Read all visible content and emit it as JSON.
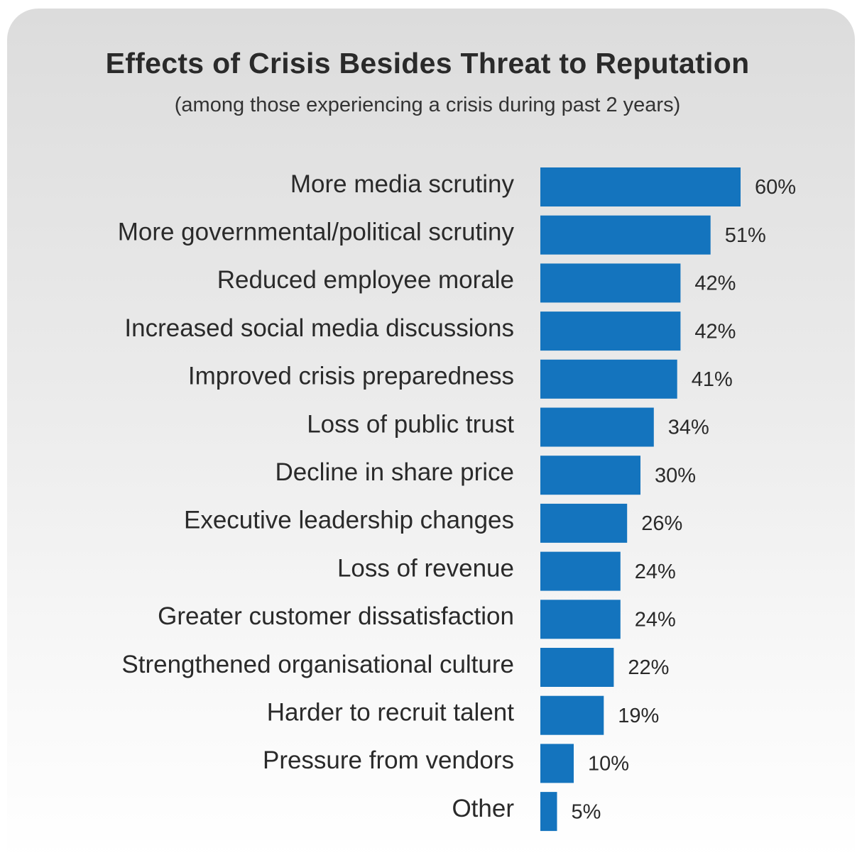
{
  "chart_data": {
    "type": "bar",
    "orientation": "horizontal",
    "title": "Effects of Crisis Besides Threat to Reputation",
    "subtitle": "(among those experiencing a crisis during past 2 years)",
    "categories": [
      "More media scrutiny",
      "More governmental/political scrutiny",
      "Reduced employee morale",
      "Increased social media discussions",
      "Improved crisis preparedness",
      "Loss of public trust",
      "Decline in share price",
      "Executive leadership changes",
      "Loss of revenue",
      "Greater customer dissatisfaction",
      "Strengthened organisational culture",
      "Harder to recruit talent",
      "Pressure from vendors",
      "Other"
    ],
    "values": [
      60,
      51,
      42,
      42,
      41,
      34,
      30,
      26,
      24,
      24,
      22,
      19,
      10,
      5
    ],
    "value_labels": [
      "60%",
      "51%",
      "42%",
      "42%",
      "41%",
      "34%",
      "30%",
      "26%",
      "24%",
      "24%",
      "22%",
      "19%",
      "10%",
      "5%"
    ],
    "unit": "%",
    "bar_color": "#1474be",
    "grid": false,
    "legend": "none"
  }
}
